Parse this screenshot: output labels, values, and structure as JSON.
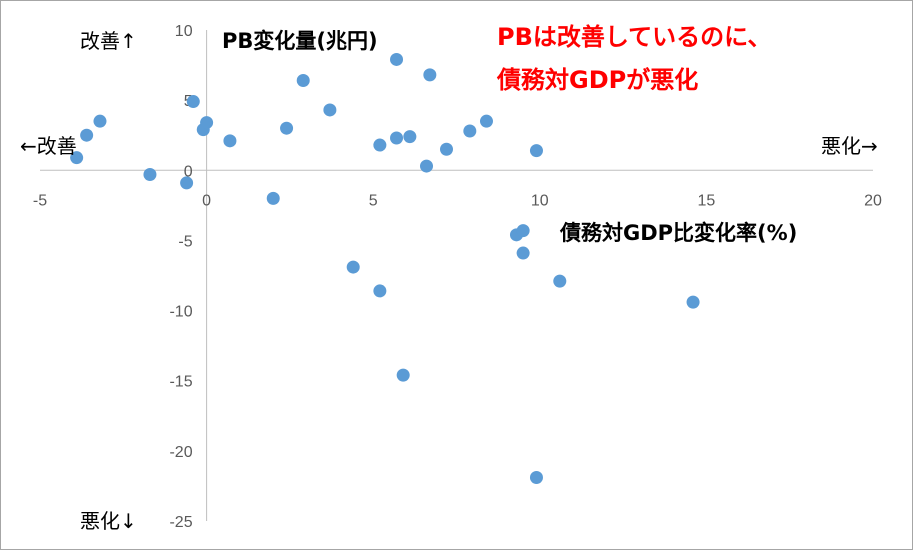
{
  "chart_data": {
    "type": "scatter",
    "xlabel": "債務対GDP比変化率(%)",
    "ylabel": "PB変化量(兆円)",
    "xlim": [
      -5,
      20
    ],
    "ylim": [
      -25,
      10
    ],
    "x_ticks": [
      "-5",
      "0",
      "5",
      "10",
      "15",
      "20"
    ],
    "y_ticks": [
      "10",
      "5",
      "0",
      "-5",
      "-10",
      "-15",
      "-20",
      "-25"
    ],
    "annotation": [
      "PBは改善しているのに、",
      "債務対GDPが悪化"
    ],
    "annotation_color": "#ff0000",
    "marker_color": "#5b9bd5",
    "direction_labels": {
      "up": "改善↑",
      "down": "悪化↓",
      "left": "←改善",
      "right": "悪化→"
    },
    "grid": false,
    "points": [
      {
        "x": -3.9,
        "y": 0.9
      },
      {
        "x": -3.6,
        "y": 2.5
      },
      {
        "x": -3.2,
        "y": 3.5
      },
      {
        "x": -1.7,
        "y": -0.3
      },
      {
        "x": -0.6,
        "y": -0.9
      },
      {
        "x": -0.4,
        "y": 4.9
      },
      {
        "x": -0.1,
        "y": 2.9
      },
      {
        "x": 0.0,
        "y": 3.4
      },
      {
        "x": 0.7,
        "y": 2.1
      },
      {
        "x": 2.0,
        "y": -2.0
      },
      {
        "x": 2.4,
        "y": 3.0
      },
      {
        "x": 2.9,
        "y": 6.4
      },
      {
        "x": 3.7,
        "y": 4.3
      },
      {
        "x": 4.4,
        "y": -6.9
      },
      {
        "x": 5.2,
        "y": 1.8
      },
      {
        "x": 5.2,
        "y": -8.6
      },
      {
        "x": 5.7,
        "y": 2.3
      },
      {
        "x": 5.7,
        "y": 7.9
      },
      {
        "x": 5.9,
        "y": -14.6
      },
      {
        "x": 6.1,
        "y": 2.4
      },
      {
        "x": 6.6,
        "y": 0.3
      },
      {
        "x": 6.7,
        "y": 6.8
      },
      {
        "x": 7.2,
        "y": 1.5
      },
      {
        "x": 7.9,
        "y": 2.8
      },
      {
        "x": 8.4,
        "y": 3.5
      },
      {
        "x": 9.3,
        "y": -4.6
      },
      {
        "x": 9.5,
        "y": -4.3
      },
      {
        "x": 9.5,
        "y": -5.9
      },
      {
        "x": 9.9,
        "y": 1.4
      },
      {
        "x": 9.9,
        "y": -21.9
      },
      {
        "x": 10.6,
        "y": -7.9
      },
      {
        "x": 14.6,
        "y": -9.4
      }
    ]
  }
}
